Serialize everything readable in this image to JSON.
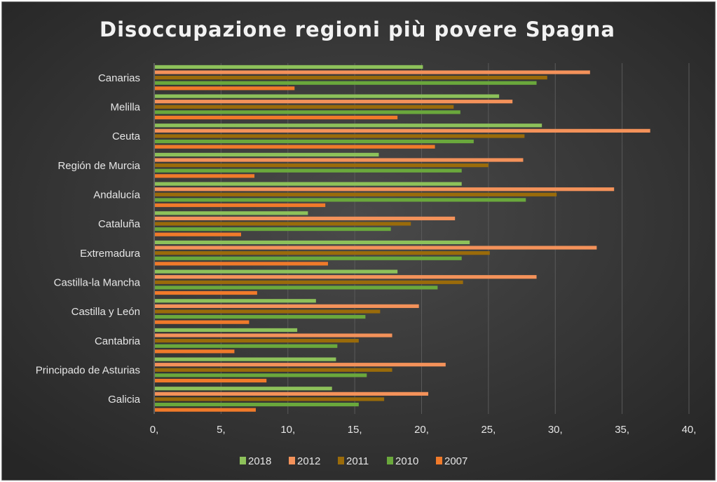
{
  "chart_data": {
    "type": "bar",
    "orientation": "horizontal",
    "title": "Disoccupazione regioni più povere Spagna",
    "xlabel": "",
    "ylabel": "",
    "xlim": [
      0,
      40
    ],
    "xticks": [
      0,
      5,
      10,
      15,
      20,
      25,
      30,
      35,
      40
    ],
    "xtick_labels": [
      "0,",
      "5,",
      "10,",
      "15,",
      "20,",
      "25,",
      "30,",
      "35,",
      "40,"
    ],
    "grid": true,
    "legend_position": "bottom",
    "categories": [
      "Canarias",
      "Melilla",
      "Ceuta",
      "Región de Murcia",
      "Andalucía",
      "Cataluña",
      "Extremadura",
      "Castilla-la Mancha",
      "Castilla y León",
      "Cantabria",
      "Principado de Asturias",
      "Galicia"
    ],
    "series": [
      {
        "name": "2018",
        "color": "#8dc15a",
        "values": [
          20.1,
          25.8,
          29.0,
          16.8,
          23.0,
          11.5,
          23.6,
          18.2,
          12.1,
          10.7,
          13.6,
          13.3
        ]
      },
      {
        "name": "2012",
        "color": "#f4925a",
        "values": [
          32.6,
          26.8,
          37.1,
          27.6,
          34.4,
          22.5,
          33.1,
          28.6,
          19.8,
          17.8,
          21.8,
          20.5
        ]
      },
      {
        "name": "2011",
        "color": "#9a6b0a",
        "values": [
          29.4,
          22.4,
          27.7,
          25.0,
          30.1,
          19.2,
          25.1,
          23.1,
          16.9,
          15.3,
          17.8,
          17.2
        ]
      },
      {
        "name": "2010",
        "color": "#6aa83c",
        "values": [
          28.6,
          22.9,
          23.9,
          23.0,
          27.8,
          17.7,
          23.0,
          21.2,
          15.8,
          13.7,
          15.9,
          15.3
        ]
      },
      {
        "name": "2007",
        "color": "#f07a2a",
        "values": [
          10.5,
          18.2,
          21.0,
          7.5,
          12.8,
          6.5,
          13.0,
          7.7,
          7.1,
          6.0,
          8.4,
          7.6
        ]
      }
    ]
  }
}
